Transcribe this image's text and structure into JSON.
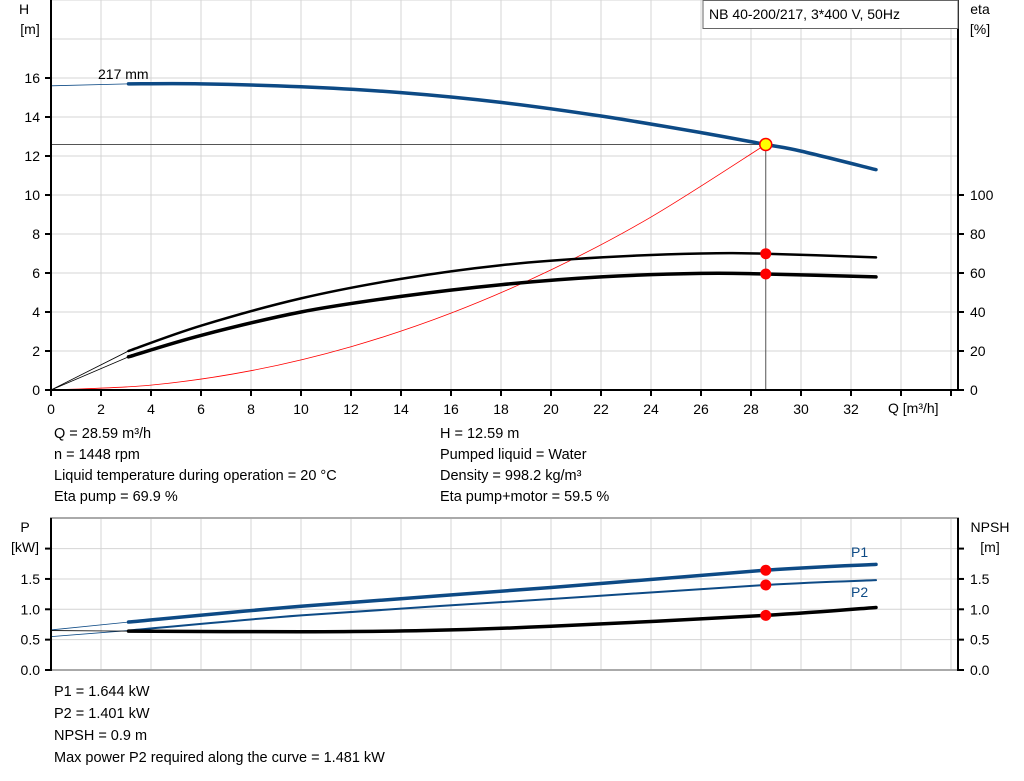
{
  "chart_data": [
    {
      "type": "line",
      "title": "NB 40-200/217, 3*400 V, 50Hz",
      "xlabel": "Q [m³/h]",
      "ylabel": "H\n[m]",
      "ylabel_unit": "[m]",
      "ylabel_name": "H",
      "y2label_name": "eta",
      "y2label_unit": "[%]",
      "xlim": [
        0,
        36
      ],
      "ylim": [
        0,
        20
      ],
      "y2lim": [
        0,
        200
      ],
      "xticks": [
        0,
        2,
        4,
        6,
        8,
        10,
        12,
        14,
        16,
        18,
        20,
        22,
        24,
        26,
        28,
        30,
        32
      ],
      "yticks": [
        0,
        2,
        4,
        6,
        8,
        10,
        12,
        14,
        16
      ],
      "y2ticks": [
        0,
        20,
        40,
        60,
        80,
        100
      ],
      "grid": true,
      "annotation": "217 mm",
      "series": [
        {
          "role": "head",
          "axis": "left",
          "color": "#0d4a85",
          "x": [
            0,
            3.1,
            6,
            10,
            14,
            18,
            22,
            26,
            28.59,
            30,
            33
          ],
          "y": [
            15.6,
            15.7,
            15.7,
            15.55,
            15.25,
            14.75,
            14.05,
            13.2,
            12.59,
            12.25,
            11.3
          ]
        },
        {
          "role": "eta-pump",
          "axis": "right",
          "color": "#000000",
          "x": [
            0,
            3.1,
            6,
            10,
            14,
            18,
            22,
            26,
            28.59,
            33
          ],
          "y": [
            0,
            20,
            33,
            47,
            57,
            64,
            68,
            70,
            69.9,
            68
          ]
        },
        {
          "role": "eta-pump-motor",
          "axis": "right",
          "color": "#000000",
          "x": [
            0,
            3.1,
            6,
            10,
            14,
            18,
            22,
            26,
            28.59,
            33
          ],
          "y": [
            0,
            17,
            28,
            40,
            48,
            54,
            58,
            59.8,
            59.5,
            58
          ]
        },
        {
          "role": "system-curve",
          "axis": "left",
          "color": "#ff0000",
          "x": [
            0,
            4,
            8,
            12,
            16,
            20,
            24,
            28.59
          ],
          "y": [
            0,
            0.25,
            0.99,
            2.22,
            3.94,
            6.16,
            8.87,
            12.59
          ]
        }
      ],
      "operating_point": {
        "Q": 28.59,
        "H": 12.59,
        "eta_pump": 69.9,
        "eta_pump_motor": 59.5
      }
    },
    {
      "type": "line",
      "ylabel_name": "P",
      "ylabel_unit": "[kW]",
      "y2label_name": "NPSH",
      "y2label_unit": "[m]",
      "xlim": [
        0,
        36
      ],
      "ylim": [
        0,
        2.5
      ],
      "y2lim": [
        0,
        2.5
      ],
      "yticks": [
        "0.0",
        "0.5",
        "1.0",
        "1.5"
      ],
      "y2ticks": [
        "0.0",
        "0.5",
        "1.0",
        "1.5"
      ],
      "grid": true,
      "series": [
        {
          "name": "P1",
          "color": "#0d4a85",
          "x": [
            0,
            3.1,
            10,
            20,
            28.59,
            33
          ],
          "y": [
            0.66,
            0.79,
            1.05,
            1.36,
            1.644,
            1.74
          ]
        },
        {
          "name": "P2",
          "color": "#0d4a85",
          "x": [
            0,
            3.1,
            10,
            20,
            28.59,
            33
          ],
          "y": [
            0.55,
            0.65,
            0.9,
            1.17,
            1.401,
            1.48
          ]
        },
        {
          "role": "npsh",
          "color": "#000000",
          "x": [
            0,
            3.1,
            10,
            15,
            20,
            28.59,
            33
          ],
          "y": [
            0.65,
            0.64,
            0.63,
            0.65,
            0.72,
            0.9,
            1.03
          ]
        }
      ],
      "operating_point": {
        "Q": 28.59,
        "P1": 1.644,
        "P2": 1.401,
        "NPSH": 0.9
      }
    }
  ],
  "info_top": {
    "left": [
      "Q = 28.59 m³/h",
      "n = 1448 rpm",
      "Liquid temperature during operation = 20 °C",
      "Eta pump = 69.9 %"
    ],
    "right": [
      "H = 12.59 m",
      "Pumped liquid = Water",
      "Density = 998.2 kg/m³",
      "Eta pump+motor = 59.5 %"
    ]
  },
  "info_bottom": [
    "P1 = 1.644 kW",
    "P2 = 1.401 kW",
    "NPSH = 0.9 m",
    "Max power P2 required along the curve = 1.481 kW"
  ],
  "colors": {
    "curve_blue": "#0d4a85",
    "marker_red": "#ff0000",
    "operating_point_fill": "#ffff00",
    "grid": "#d4d4d4"
  }
}
